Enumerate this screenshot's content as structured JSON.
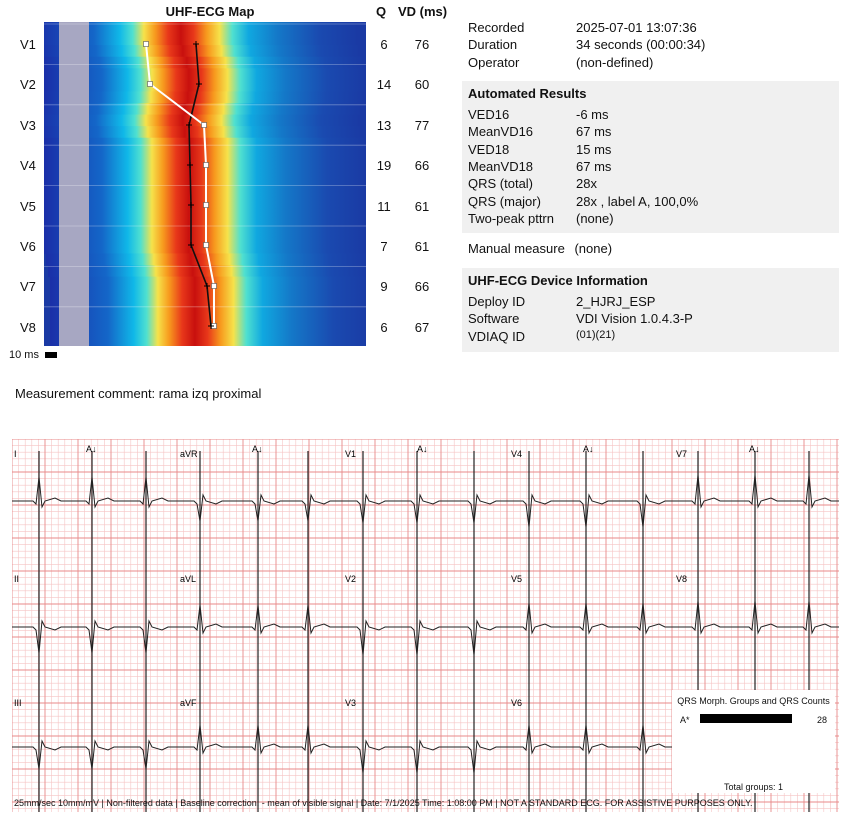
{
  "map": {
    "title": "UHF-ECG Map",
    "col_q": "Q",
    "col_vd": "VD (ms)",
    "scale_label": "10 ms",
    "leads": [
      {
        "name": "V1",
        "q": "6",
        "vd": "76"
      },
      {
        "name": "V2",
        "q": "14",
        "vd": "60"
      },
      {
        "name": "V3",
        "q": "13",
        "vd": "77"
      },
      {
        "name": "V4",
        "q": "19",
        "vd": "66"
      },
      {
        "name": "V5",
        "q": "11",
        "vd": "61"
      },
      {
        "name": "V6",
        "q": "7",
        "vd": "61"
      },
      {
        "name": "V7",
        "q": "9",
        "vd": "66"
      },
      {
        "name": "V8",
        "q": "6",
        "vd": "67"
      }
    ]
  },
  "recording": {
    "recorded_label": "Recorded",
    "recorded_value": "2025-07-01 13:07:36",
    "duration_label": "Duration",
    "duration_value": "34 seconds (00:00:34)",
    "operator_label": "Operator",
    "operator_value": "(non-defined)"
  },
  "results": {
    "title": "Automated Results",
    "items": [
      {
        "label": "VED16",
        "value": "-6 ms"
      },
      {
        "label": "MeanVD16",
        "value": "67 ms"
      },
      {
        "label": "VED18",
        "value": "15 ms"
      },
      {
        "label": "MeanVD18",
        "value": "67 ms"
      },
      {
        "label": "QRS  (total)",
        "value": "28x"
      },
      {
        "label": "QRS  (major)",
        "value": "28x , label A, 100,0%"
      },
      {
        "label": "Two-peak  pttrn",
        "value": "(none)"
      }
    ]
  },
  "manual": {
    "label": "Manual  measure",
    "value": "(none)"
  },
  "device": {
    "title": "UHF-ECG Device Information",
    "items": [
      {
        "label": "Deploy ID",
        "value": "2_HJRJ_ESP"
      },
      {
        "label": "Software",
        "value": "VDI Vision 1.0.4.3-P"
      },
      {
        "label": "VDIAQ  ID",
        "value": "(01)(21)"
      }
    ]
  },
  "comment": "Measurement comment: rama izq proximal",
  "ecg": {
    "rows": [
      [
        "I",
        "aVR",
        "V1",
        "V4",
        "V7"
      ],
      [
        "II",
        "aVL",
        "V2",
        "V5",
        "V8"
      ],
      [
        "III",
        "aVF",
        "V3",
        "V6",
        ""
      ]
    ],
    "marker": "A↓",
    "footer": "25mm/sec   10mm/mV  |  Non-filtered data  |  Baseline correction: - mean of visible signal  |  Date: 7/1/2025 Time: 1:08:00 PM  |  NOT A STANDARD ECG. FOR ASSISTIVE PURPOSES ONLY."
  },
  "qrs_box": {
    "title": "QRS Morph. Groups and QRS Counts",
    "group": "A*",
    "count": "28",
    "total": "Total groups: 1"
  },
  "colors": {
    "grid_minor": "#f6c4c4",
    "grid_major": "#e88a8a",
    "panel": "#f0f0f0"
  }
}
